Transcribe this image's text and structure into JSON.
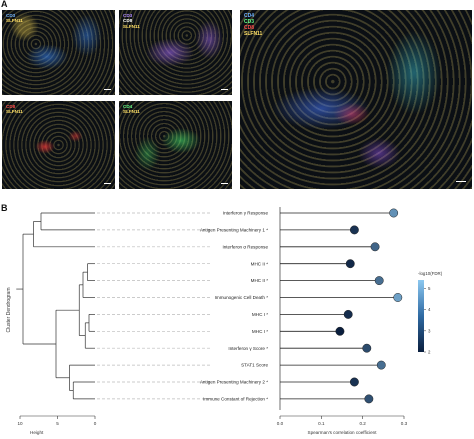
{
  "panel_a": {
    "letter": "A",
    "tiles": [
      {
        "id": "t1",
        "channels": [
          {
            "name": "CD3",
            "color": "#6fb3ff"
          },
          {
            "name": "SLFN11",
            "color": "#ffe066"
          }
        ]
      },
      {
        "id": "t2",
        "channels": [
          {
            "name": "CD3",
            "color": "#b38cff"
          },
          {
            "name": "CD8",
            "color": "#ffffff"
          },
          {
            "name": "SLFN11",
            "color": "#ffe066"
          }
        ]
      },
      {
        "id": "t3",
        "channels": [
          {
            "name": "CD8",
            "color": "#ff4d4d"
          },
          {
            "name": "SLFN11",
            "color": "#ffe066"
          }
        ]
      },
      {
        "id": "t4",
        "channels": [
          {
            "name": "CD4",
            "color": "#66ff88"
          },
          {
            "name": "SLFN11",
            "color": "#ffe066"
          }
        ]
      },
      {
        "id": "t5",
        "channels": [
          {
            "name": "CD4",
            "color": "#6fb3ff"
          },
          {
            "name": "CD3",
            "color": "#66ff88"
          },
          {
            "name": "CD8",
            "color": "#ff4d4d"
          },
          {
            "name": "SLFN11",
            "color": "#ffe066"
          }
        ]
      }
    ]
  },
  "panel_b": {
    "letter": "B",
    "dendrogram_ylabel": "Cluster Dendrogram",
    "dendrogram_xlabel": "Height",
    "dendrogram_ticks": [
      "10",
      "5",
      "0"
    ],
    "lollipop_xlabel": "Spearman's correlation coefficient",
    "colorbar_title": "-log10(FDR)",
    "colorbar_ticks": [
      "5",
      "4",
      "3",
      "2"
    ]
  },
  "chart_data": {
    "type": "scatter",
    "xlabel": "Spearman's correlation coefficient",
    "xlim": [
      0.0,
      0.3
    ],
    "xticks": [
      0.0,
      0.1,
      0.2,
      0.3
    ],
    "categories": [
      "Interferon γ Response",
      "Antigen Presenting Machinery 1 *",
      "Interferon α Response",
      "MHC II *",
      "MHC II *",
      "Immunogenic Cell Death *",
      "MHC I *",
      "MHC I *",
      "Interferon γ Score *",
      "STAT1 Score",
      "Antigen Presenting Machinery 2 *",
      "Immune Constant of Rejection *"
    ],
    "values": [
      0.275,
      0.18,
      0.23,
      0.17,
      0.24,
      0.285,
      0.165,
      0.145,
      0.21,
      0.245,
      0.18,
      0.215
    ],
    "neg_log10_fdr": [
      4.3,
      2.4,
      3.4,
      2.2,
      3.6,
      4.6,
      2.3,
      2.0,
      2.9,
      3.6,
      2.4,
      3.0
    ],
    "colorbar_range": [
      2,
      5.4
    ],
    "colors": {
      "low": "#0a1e3d",
      "high": "#8cc8f0"
    }
  }
}
